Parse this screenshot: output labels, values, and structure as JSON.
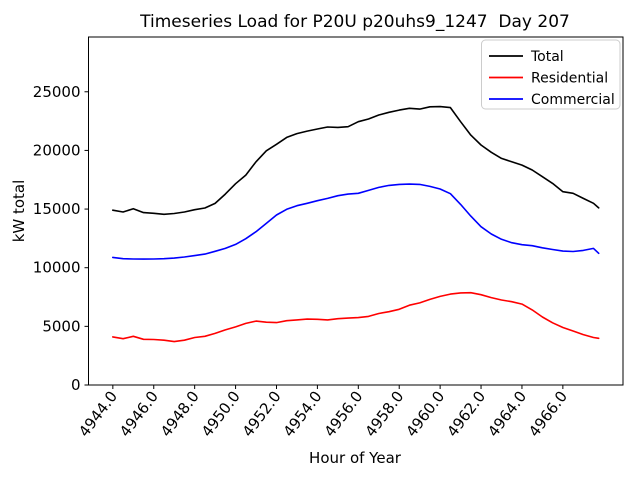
{
  "figure": {
    "title": "Timeseries Load for P20U p20uhs9_1247  Day 207",
    "xlabel": "Hour of Year",
    "ylabel": "kW total"
  },
  "chart_data": {
    "type": "line",
    "title": "Timeseries Load for P20U p20uhs9_1247  Day 207",
    "xlabel": "Hour of Year",
    "ylabel": "kW total",
    "grid": false,
    "legend_position": "upper right",
    "xlim": [
      4942.81,
      4968.94
    ],
    "ylim": [
      0,
      29670
    ],
    "x_ticks": [
      4944,
      4946,
      4948,
      4950,
      4952,
      4954,
      4956,
      4958,
      4960,
      4962,
      4964,
      4966
    ],
    "x_tick_labels": [
      "4944.0",
      "4946.0",
      "4948.0",
      "4950.0",
      "4952.0",
      "4954.0",
      "4956.0",
      "4958.0",
      "4960.0",
      "4962.0",
      "4964.0",
      "4966.0"
    ],
    "y_ticks": [
      0,
      5000,
      10000,
      15000,
      20000,
      25000
    ],
    "y_tick_labels": [
      "0",
      "5000",
      "10000",
      "15000",
      "20000",
      "25000"
    ],
    "x": [
      4944.0,
      4944.5,
      4945.0,
      4945.5,
      4946.0,
      4946.5,
      4947.0,
      4947.5,
      4948.0,
      4948.5,
      4949.0,
      4949.5,
      4950.0,
      4950.5,
      4951.0,
      4951.5,
      4952.0,
      4952.5,
      4953.0,
      4953.5,
      4954.0,
      4954.5,
      4955.0,
      4955.5,
      4956.0,
      4956.5,
      4957.0,
      4957.5,
      4958.0,
      4958.5,
      4959.0,
      4959.5,
      4960.0,
      4960.5,
      4961.0,
      4961.5,
      4962.0,
      4962.5,
      4963.0,
      4963.5,
      4964.0,
      4964.5,
      4965.0,
      4965.5,
      4966.0,
      4966.5,
      4967.0,
      4967.5,
      4967.75
    ],
    "series": [
      {
        "name": "Total",
        "color": "#000000",
        "values": [
          14900,
          14750,
          15030,
          14700,
          14640,
          14550,
          14620,
          14750,
          14950,
          15090,
          15480,
          16280,
          17160,
          17900,
          19030,
          19970,
          20520,
          21110,
          21430,
          21650,
          21830,
          22000,
          21960,
          22020,
          22450,
          22680,
          23020,
          23250,
          23440,
          23590,
          23520,
          23720,
          23740,
          23650,
          22450,
          21310,
          20460,
          19840,
          19320,
          19030,
          18750,
          18330,
          17760,
          17190,
          16480,
          16340,
          15910,
          15490,
          15100
        ]
      },
      {
        "name": "Residential",
        "color": "#ff0000",
        "values": [
          4100,
          3950,
          4150,
          3900,
          3880,
          3820,
          3700,
          3820,
          4050,
          4150,
          4400,
          4700,
          4950,
          5250,
          5450,
          5350,
          5320,
          5480,
          5550,
          5620,
          5600,
          5550,
          5650,
          5700,
          5750,
          5850,
          6100,
          6250,
          6450,
          6800,
          7000,
          7300,
          7550,
          7750,
          7850,
          7870,
          7700,
          7450,
          7250,
          7100,
          6900,
          6400,
          5800,
          5300,
          4900,
          4600,
          4300,
          4050,
          3980
        ]
      },
      {
        "name": "Commercial",
        "color": "#0000ff",
        "values": [
          10880,
          10770,
          10740,
          10730,
          10740,
          10770,
          10820,
          10910,
          11030,
          11160,
          11400,
          11650,
          11990,
          12470,
          13070,
          13780,
          14490,
          14980,
          15290,
          15490,
          15710,
          15910,
          16140,
          16280,
          16340,
          16590,
          16850,
          17020,
          17100,
          17130,
          17100,
          16930,
          16710,
          16310,
          15400,
          14400,
          13500,
          12870,
          12420,
          12130,
          11960,
          11880,
          11700,
          11550,
          11420,
          11380,
          11480,
          11650,
          11230
        ]
      }
    ]
  }
}
